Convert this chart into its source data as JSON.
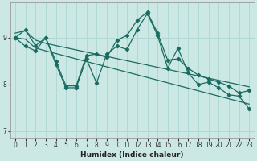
{
  "xlabel": "Humidex (Indice chaleur)",
  "bg_color": "#cce8e5",
  "grid_color": "#b0d8d4",
  "line_color": "#1a6b60",
  "xlim": [
    -0.5,
    23.5
  ],
  "ylim": [
    6.85,
    9.75
  ],
  "yticks": [
    7,
    8,
    9
  ],
  "xticks": [
    0,
    1,
    2,
    3,
    4,
    5,
    6,
    7,
    8,
    9,
    10,
    11,
    12,
    13,
    14,
    15,
    16,
    17,
    18,
    19,
    20,
    21,
    22,
    23
  ],
  "series": [
    {
      "x": [
        0,
        1,
        2,
        3,
        4,
        5,
        6,
        7,
        8,
        9,
        10,
        11,
        12,
        13,
        14,
        15,
        16,
        17,
        18,
        19,
        20,
        21,
        22,
        23
      ],
      "y": [
        9.0,
        8.82,
        8.72,
        9.0,
        8.43,
        7.93,
        7.93,
        8.55,
        8.03,
        8.65,
        8.82,
        8.75,
        9.18,
        9.52,
        9.05,
        8.35,
        8.78,
        8.25,
        8.0,
        8.05,
        7.93,
        7.78,
        7.75,
        7.48
      ]
    },
    {
      "x": [
        0,
        1,
        2,
        3,
        4,
        5,
        6,
        7,
        8,
        9,
        10,
        11,
        12,
        13,
        14,
        15,
        16,
        17,
        18,
        19,
        20,
        21,
        22,
        23
      ],
      "y": [
        9.0,
        9.17,
        8.83,
        9.0,
        8.5,
        7.97,
        7.97,
        8.62,
        8.65,
        8.58,
        8.95,
        9.05,
        9.38,
        9.55,
        9.1,
        8.52,
        8.55,
        8.35,
        8.2,
        8.12,
        8.05,
        7.97,
        7.82,
        7.87
      ]
    },
    {
      "x": [
        0,
        1,
        2,
        3,
        23
      ],
      "y": [
        9.1,
        9.15,
        8.95,
        8.88,
        7.95
      ]
    },
    {
      "x": [
        0,
        1,
        2,
        3,
        23
      ],
      "y": [
        9.0,
        8.97,
        8.78,
        8.72,
        7.58
      ]
    }
  ]
}
